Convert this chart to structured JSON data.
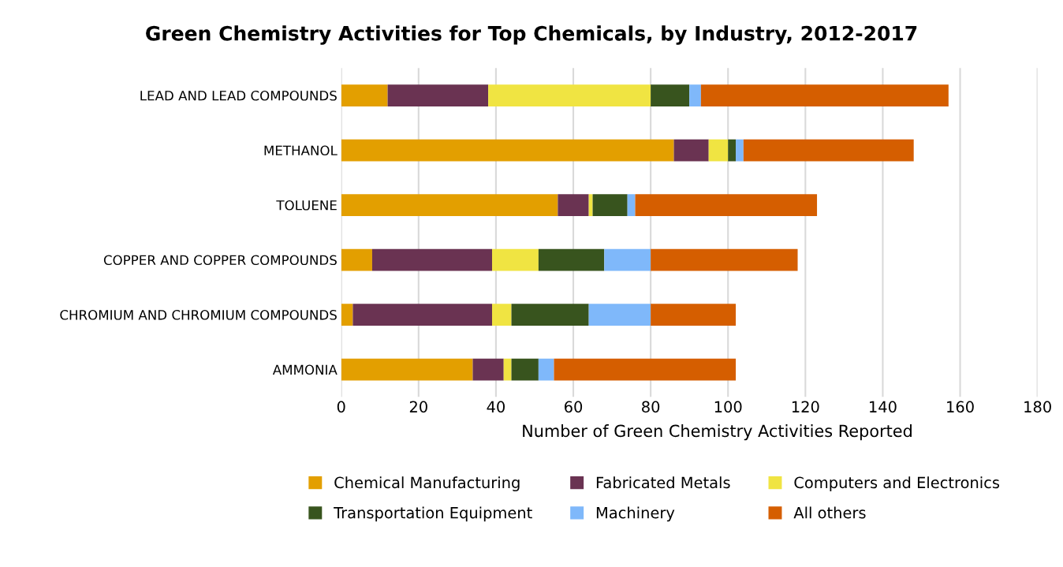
{
  "chart_data": {
    "type": "bar",
    "orientation": "horizontal",
    "stacked": true,
    "title": "Green Chemistry Activities for Top Chemicals, by Industry, 2012-2017",
    "xlabel": "Number of Green Chemistry Activities Reported",
    "categories": [
      "LEAD AND LEAD COMPOUNDS",
      "METHANOL",
      "TOLUENE",
      "COPPER AND COPPER COMPOUNDS",
      "CHROMIUM AND CHROMIUM COMPOUNDS",
      "AMMONIA"
    ],
    "series": [
      {
        "name": "Chemical Manufacturing",
        "color": "#e39f00",
        "values": [
          12,
          86,
          56,
          8,
          3,
          34
        ]
      },
      {
        "name": "Fabricated Metals",
        "color": "#6a3352",
        "values": [
          26,
          9,
          8,
          31,
          36,
          8
        ]
      },
      {
        "name": "Computers and Electronics",
        "color": "#f0e442",
        "values": [
          42,
          5,
          1,
          12,
          5,
          2
        ]
      },
      {
        "name": "Transportation Equipment",
        "color": "#38541e",
        "values": [
          10,
          2,
          9,
          17,
          20,
          7
        ]
      },
      {
        "name": "Machinery",
        "color": "#7fb8fa",
        "values": [
          3,
          2,
          2,
          12,
          16,
          4
        ]
      },
      {
        "name": "All others",
        "color": "#d55e00",
        "values": [
          64,
          44,
          47,
          38,
          22,
          47
        ]
      }
    ],
    "xlim": [
      0,
      180
    ],
    "xticks": [
      0,
      20,
      40,
      60,
      80,
      100,
      120,
      140,
      160,
      180
    ],
    "grid": "x",
    "legend": "bottom"
  }
}
